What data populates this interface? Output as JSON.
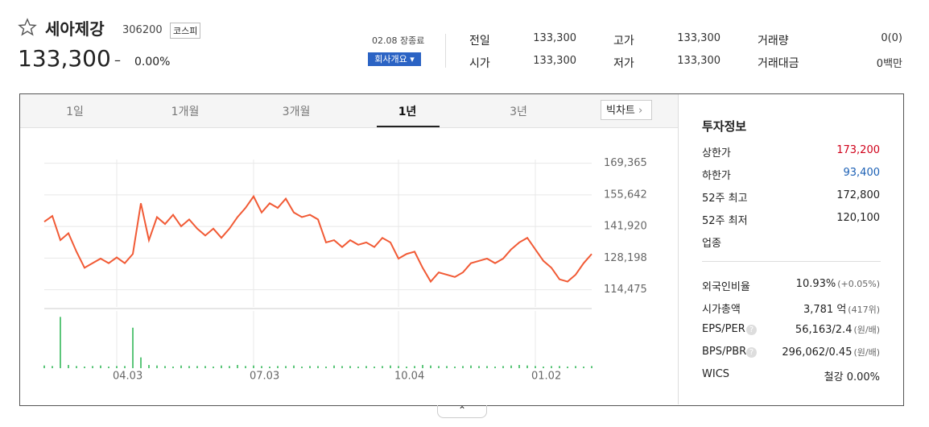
{
  "header": {
    "name": "세아제강",
    "code": "306200",
    "market": "코스피",
    "price": "133,300",
    "change": "–",
    "change_rate": "0.00%",
    "status": "02.08 장종료",
    "company_button": "회사개요"
  },
  "summary": [
    {
      "label": "전일",
      "value": "133,300"
    },
    {
      "label": "시가",
      "value": "133,300"
    },
    {
      "label": "고가",
      "value": "133,300"
    },
    {
      "label": "저가",
      "value": "133,300"
    },
    {
      "label": "거래량",
      "value": "0(0)"
    },
    {
      "label": "거래대금",
      "value": "0백만"
    }
  ],
  "tabs": [
    "1일",
    "1개월",
    "3개월",
    "1년",
    "3년"
  ],
  "active_tab": 3,
  "big_chart": "빅차트",
  "invest_info": {
    "title": "투자정보",
    "rows": [
      {
        "label": "상한가",
        "value": "173,200",
        "color": "#d0021b"
      },
      {
        "label": "하한가",
        "value": "93,400",
        "color": "#1a5fb4"
      },
      {
        "label": "52주 최고",
        "value": "172,800"
      },
      {
        "label": "52주 최저",
        "value": "120,100"
      },
      {
        "label": "업종"
      }
    ],
    "rows2": [
      {
        "label": "외국인비율",
        "value": "10.93%",
        "note": "(+0.05%)"
      },
      {
        "label": "시가총액",
        "value": "3,781 억",
        "note": "(417위)"
      },
      {
        "label": "EPS/PER",
        "value": "56,163/2.4",
        "note": "(원/배)",
        "help": "?"
      },
      {
        "label": "BPS/PBR",
        "value": "296,062/0.45",
        "note": "(원/배)",
        "help": "?"
      },
      {
        "label": "WICS",
        "value": "철강 0.00%"
      }
    ]
  },
  "chart_data": {
    "type": "line",
    "color": "#f15a35",
    "grid": true,
    "categories": [
      null,
      null,
      null,
      null,
      null,
      null,
      null,
      null,
      null,
      "04.03",
      null,
      null,
      null,
      null,
      null,
      null,
      null,
      null,
      null,
      null,
      null,
      null,
      null,
      null,
      null,
      null,
      "07.03",
      null,
      null,
      null,
      null,
      null,
      null,
      null,
      null,
      null,
      null,
      null,
      null,
      null,
      null,
      null,
      null,
      null,
      "10.04",
      null,
      null,
      null,
      null,
      null,
      null,
      null,
      null,
      null,
      null,
      null,
      null,
      null,
      null,
      null,
      null,
      "01.02",
      null,
      null,
      null,
      null,
      null,
      null,
      null
    ],
    "values": [
      144000,
      146500,
      136000,
      139000,
      131000,
      124000,
      126000,
      128000,
      126000,
      128500,
      126000,
      130000,
      152000,
      136000,
      146000,
      143000,
      147000,
      142000,
      145000,
      141000,
      138000,
      141000,
      137000,
      141000,
      146000,
      150000,
      155000,
      148000,
      152000,
      150000,
      154000,
      148000,
      146000,
      147000,
      145000,
      135000,
      136000,
      133000,
      136000,
      134000,
      135000,
      133000,
      137000,
      135000,
      128000,
      130000,
      131000,
      124000,
      118000,
      122000,
      121000,
      120000,
      122000,
      126000,
      127000,
      128000,
      126000,
      128000,
      132000,
      135000,
      137000,
      132000,
      127000,
      124000,
      119000,
      118000,
      121000,
      126000,
      130000
    ],
    "ylim": [
      107000,
      171000
    ],
    "yticks": [
      {
        "value": 169365,
        "label": "169,365"
      },
      {
        "value": 155642,
        "label": "155,642"
      },
      {
        "value": 141920,
        "label": "141,920"
      },
      {
        "value": 128198,
        "label": "128,198"
      },
      {
        "value": 114475,
        "label": "114,475"
      }
    ],
    "volume": [
      5,
      4,
      95,
      6,
      4,
      3,
      4,
      5,
      3,
      4,
      4,
      75,
      20,
      6,
      5,
      4,
      3,
      5,
      4,
      4,
      4,
      3,
      5,
      4,
      6,
      4,
      5,
      4,
      3,
      4,
      4,
      5,
      3,
      4,
      4,
      3,
      5,
      4,
      4,
      3,
      4,
      3,
      4,
      5,
      4,
      3,
      4,
      6,
      5,
      4,
      4,
      3,
      4,
      5,
      4,
      4,
      3,
      4,
      5,
      6,
      5,
      4,
      3,
      4,
      4,
      3,
      4,
      3,
      4
    ],
    "volume_color": "#5cc67a",
    "volume_lim": [
      0,
      100
    ]
  }
}
